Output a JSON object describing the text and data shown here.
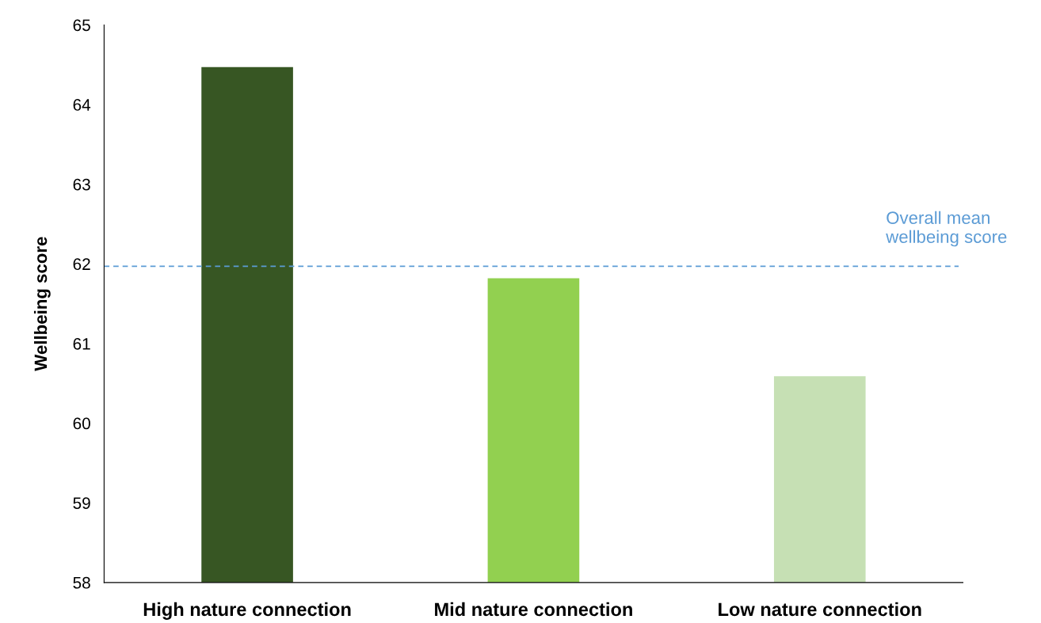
{
  "chart_data": {
    "type": "bar",
    "ylabel": "Wellbeing score",
    "categories": [
      "High nature connection",
      "Mid nature connection",
      "Low nature connection"
    ],
    "values": [
      64.47,
      61.82,
      60.59
    ],
    "colors": [
      "#375623",
      "#92d050",
      "#c6e0b4"
    ],
    "ylim": [
      58,
      65
    ],
    "yticks": [
      58,
      59,
      60,
      61,
      62,
      63,
      64,
      65
    ],
    "grid": false,
    "ref_lines": [
      {
        "axis": "y",
        "value": 61.97,
        "label": "Overall mean\nwellbeing score",
        "color": "#5b9bd5",
        "line_style": "dashed"
      }
    ]
  }
}
